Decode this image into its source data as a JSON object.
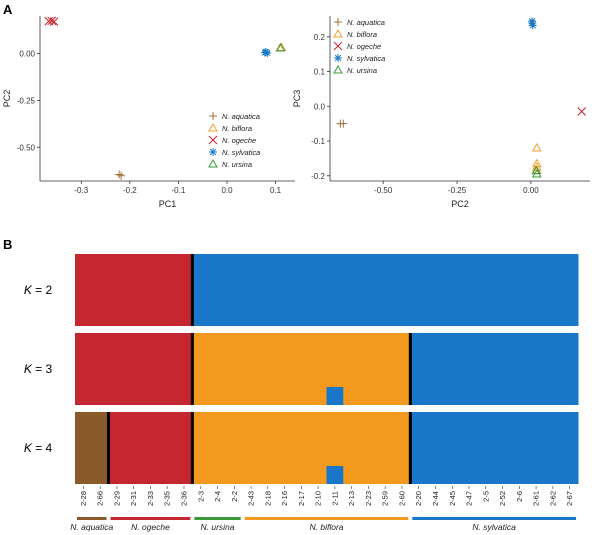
{
  "panels": {
    "a": "A",
    "b": "B"
  },
  "colors": {
    "N. aquatica": "#a0703c",
    "N. biflora": "#f0a030",
    "N. ogeche": "#c8262e",
    "N. sylvatica": "#1a78c2",
    "N. ursina": "#3a9a3a"
  },
  "structure_colors": {
    "aquatica_brown": "#8b5a2b",
    "red": "#c4272f",
    "orange": "#f39a1e",
    "blue": "#1877c9",
    "boundary": "#000000"
  },
  "chart_data": [
    {
      "type": "scatter",
      "title": "",
      "xlabel": "PC1",
      "ylabel": "PC2",
      "xlim": [
        -0.385,
        0.14
      ],
      "ylim": [
        -0.68,
        0.2
      ],
      "xticks": [
        "-0.3",
        "-0.2",
        "-0.1",
        "0.0",
        "0.1"
      ],
      "xtick_values": [
        -0.3,
        -0.2,
        -0.1,
        0.0,
        0.1
      ],
      "yticks": [
        "0.00",
        "-0.25",
        "-0.50"
      ],
      "ytick_values": [
        0.0,
        -0.25,
        -0.5
      ],
      "legend_position": "bottom-right",
      "series": [
        {
          "name": "N. aquatica",
          "marker": "plus",
          "points": [
            [
              -0.222,
              -0.645
            ],
            [
              -0.218,
              -0.652
            ]
          ]
        },
        {
          "name": "N. biflora",
          "marker": "triangle",
          "points": [
            [
              0.11,
              0.03
            ],
            [
              0.112,
              0.032
            ]
          ]
        },
        {
          "name": "N. ogeche",
          "marker": "x",
          "points": [
            [
              -0.367,
              0.172
            ],
            [
              -0.361,
              0.174
            ],
            [
              -0.356,
              0.17
            ]
          ]
        },
        {
          "name": "N. sylvatica",
          "marker": "asterisk",
          "points": [
            [
              0.078,
              0.005
            ],
            [
              0.08,
              0.008
            ],
            [
              0.083,
              0.003
            ]
          ]
        },
        {
          "name": "N. ursina",
          "marker": "triangle",
          "points": [
            [
              0.11,
              0.03
            ]
          ]
        }
      ]
    },
    {
      "type": "scatter",
      "title": "",
      "xlabel": "PC2",
      "ylabel": "PC3",
      "xlim": [
        -0.68,
        0.2
      ],
      "ylim": [
        -0.215,
        0.26
      ],
      "xticks": [
        "-0.50",
        "-0.25",
        "0.00"
      ],
      "xtick_values": [
        -0.5,
        -0.25,
        0.0
      ],
      "yticks": [
        "0.2",
        "0.1",
        "0.0",
        "-0.1",
        "-0.2"
      ],
      "ytick_values": [
        0.2,
        0.1,
        0.0,
        -0.1,
        -0.2
      ],
      "legend_position": "top-left",
      "series": [
        {
          "name": "N. aquatica",
          "marker": "plus",
          "points": [
            [
              -0.645,
              -0.05
            ],
            [
              -0.635,
              -0.05
            ]
          ]
        },
        {
          "name": "N. biflora",
          "marker": "triangle",
          "points": [
            [
              0.02,
              -0.12
            ],
            [
              0.02,
              -0.165
            ],
            [
              0.02,
              -0.175
            ],
            [
              0.02,
              -0.185
            ]
          ]
        },
        {
          "name": "N. ogeche",
          "marker": "x",
          "points": [
            [
              0.172,
              -0.015
            ]
          ]
        },
        {
          "name": "N. sylvatica",
          "marker": "asterisk",
          "points": [
            [
              0.005,
              0.24
            ],
            [
              0.006,
              0.233
            ],
            [
              0.004,
              0.245
            ]
          ]
        },
        {
          "name": "N. ursina",
          "marker": "triangle",
          "points": [
            [
              0.018,
              -0.185
            ],
            [
              0.02,
              -0.195
            ]
          ]
        }
      ]
    },
    {
      "type": "bar",
      "title": "",
      "samples": [
        "2-28",
        "2-66",
        "2-29",
        "2-31",
        "2-33",
        "2-35",
        "2-36",
        "2-3",
        "2-4",
        "2-2",
        "2-43",
        "2-18",
        "2-16",
        "2-17",
        "2-10",
        "2-11",
        "2-13",
        "2-23",
        "2-59",
        "2-60",
        "2-20",
        "2-44",
        "2-45",
        "2-47",
        "2-5",
        "2-52",
        "2-6",
        "2-61",
        "2-62",
        "2-67"
      ],
      "rows": [
        {
          "label": "K = 2",
          "segments": [
            {
              "start": 0,
              "end": 7,
              "color": "red"
            },
            {
              "start": 7,
              "end": 30,
              "color": "blue"
            }
          ],
          "boundaries": [
            7
          ],
          "patches": []
        },
        {
          "label": "K = 3",
          "segments": [
            {
              "start": 0,
              "end": 7,
              "color": "red"
            },
            {
              "start": 7,
              "end": 20,
              "color": "orange"
            },
            {
              "start": 20,
              "end": 30,
              "color": "blue"
            }
          ],
          "boundaries": [
            7,
            20
          ],
          "patches": [
            {
              "sample_index": 15,
              "fraction": 0.25,
              "color": "blue"
            }
          ]
        },
        {
          "label": "K = 4",
          "segments": [
            {
              "start": 0,
              "end": 2,
              "color": "aquatica_brown"
            },
            {
              "start": 2,
              "end": 7,
              "color": "red"
            },
            {
              "start": 7,
              "end": 20,
              "color": "orange"
            },
            {
              "start": 20,
              "end": 30,
              "color": "blue"
            }
          ],
          "boundaries": [
            2,
            7,
            20
          ],
          "patches": [
            {
              "sample_index": 15,
              "fraction": 0.25,
              "color": "blue"
            }
          ]
        }
      ],
      "groups": [
        {
          "name": "N. aquatica",
          "start": 0,
          "end": 2,
          "color": "aquatica_brown"
        },
        {
          "name": "N. ogeche",
          "start": 2,
          "end": 7,
          "color": "red"
        },
        {
          "name": "N. ursina",
          "start": 7,
          "end": 10,
          "color": "#3a9a3a"
        },
        {
          "name": "N. biflora",
          "start": 10,
          "end": 20,
          "color": "orange"
        },
        {
          "name": "N. sylvatica",
          "start": 20,
          "end": 30,
          "color": "blue"
        }
      ]
    }
  ]
}
